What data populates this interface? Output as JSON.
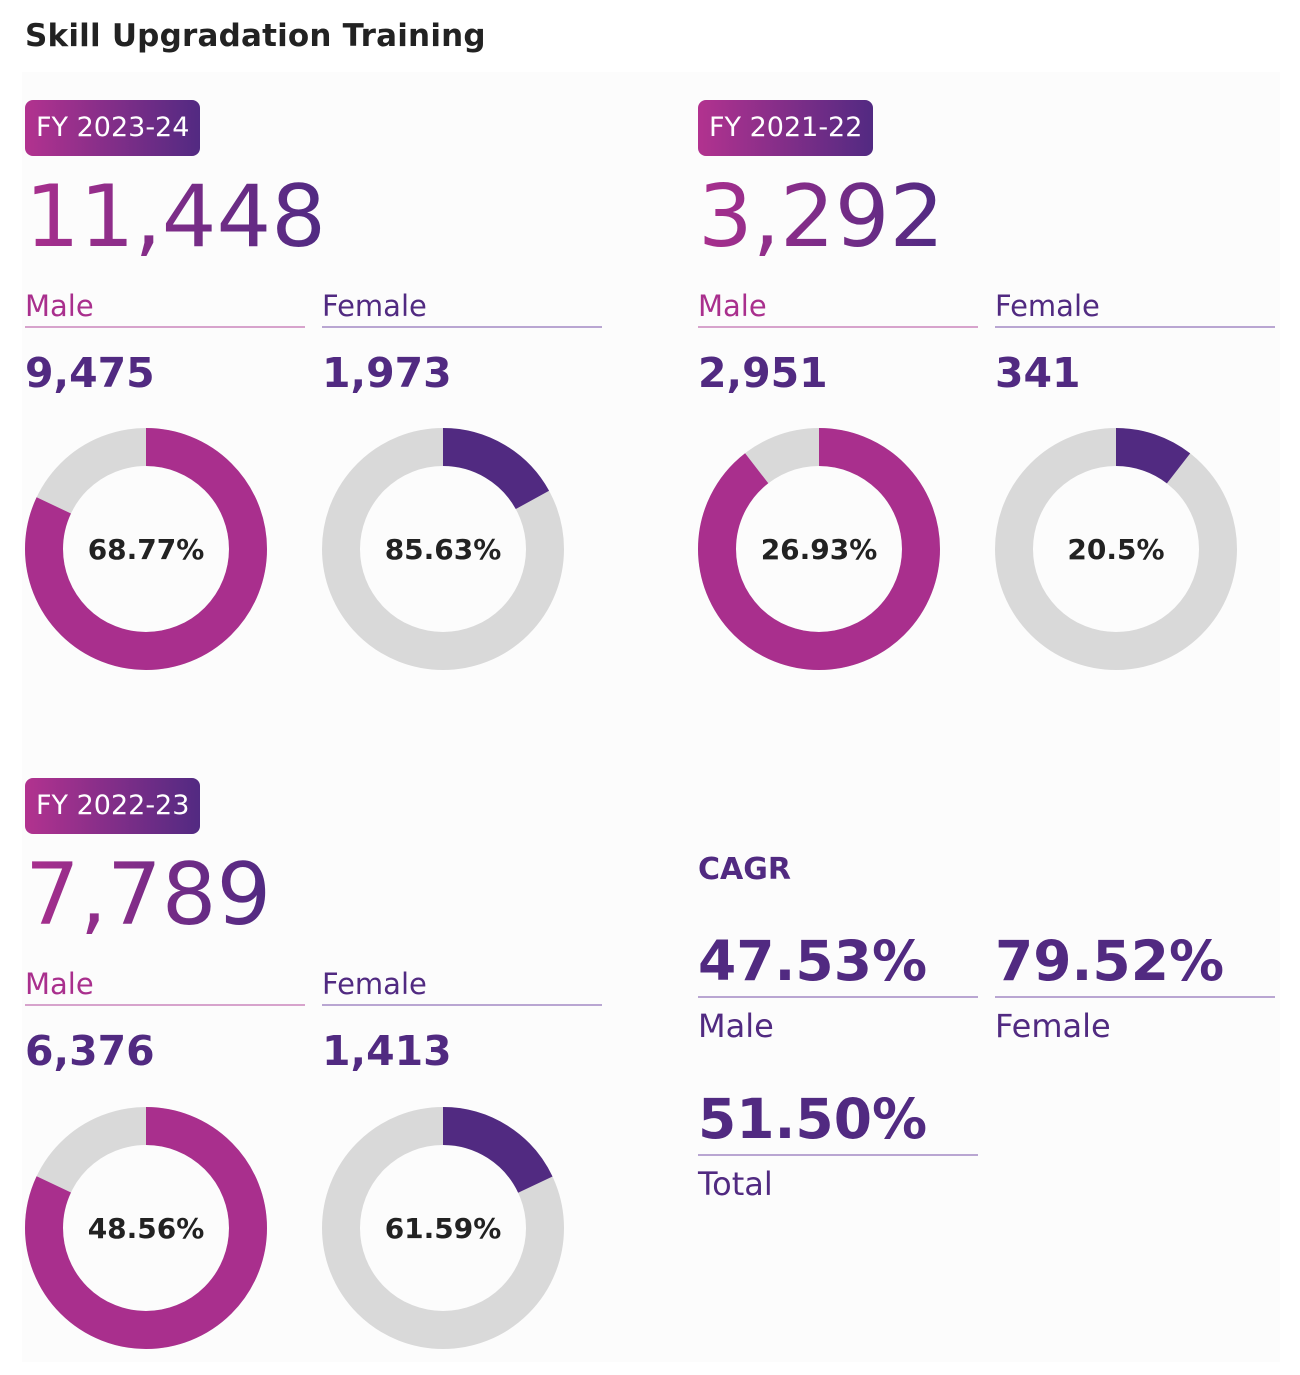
{
  "title": "Skill Upgradation Training",
  "colors": {
    "male": "#a92f8d",
    "female": "#512a81",
    "track": "#d9d9d9",
    "badge_start": "#b2328f",
    "badge_end": "#522a82"
  },
  "chart_data": {
    "type": "donut",
    "title": "Skill Upgradation Training",
    "series": [
      {
        "year": "FY 2023-24",
        "total": "11,448",
        "male": {
          "label": "Male",
          "count": "9,475",
          "ring_label": "68.77%",
          "fill_fraction": 0.82
        },
        "female": {
          "label": "Female",
          "count": "1,973",
          "ring_label": "85.63%",
          "fill_fraction": 0.17
        }
      },
      {
        "year": "FY 2021-22",
        "total": "3,292",
        "male": {
          "label": "Male",
          "count": "2,951",
          "ring_label": "26.93%",
          "fill_fraction": 0.895
        },
        "female": {
          "label": "Female",
          "count": "341",
          "ring_label": "20.5%",
          "fill_fraction": 0.105
        }
      },
      {
        "year": "FY 2022-23",
        "total": "7,789",
        "male": {
          "label": "Male",
          "count": "6,376",
          "ring_label": "48.56%",
          "fill_fraction": 0.82
        },
        "female": {
          "label": "Female",
          "count": "1,413",
          "ring_label": "61.59%",
          "fill_fraction": 0.18
        }
      }
    ]
  },
  "cagr": {
    "title": "CAGR",
    "male": {
      "value": "47.53%",
      "label": "Male"
    },
    "female": {
      "value": "79.52%",
      "label": "Female"
    },
    "total": {
      "value": "51.50%",
      "label": "Total"
    }
  }
}
